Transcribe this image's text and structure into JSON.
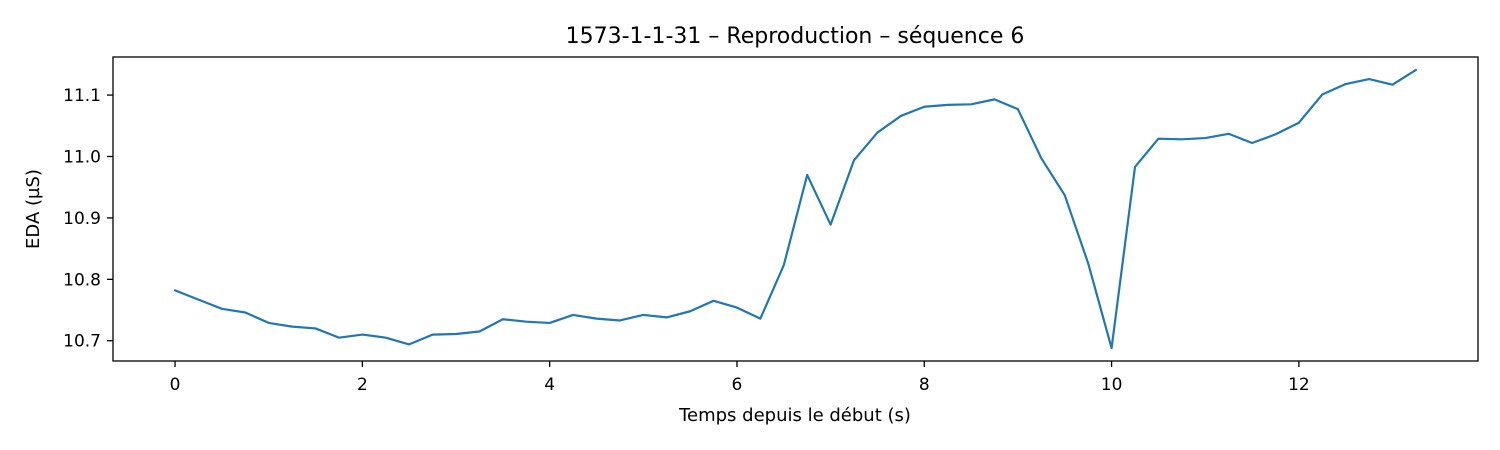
{
  "chart_data": {
    "type": "line",
    "title": "1573-1-1-31 – Reproduction – séquence 6",
    "xlabel": "Temps depuis le début (s)",
    "ylabel": "EDA (µS)",
    "xlim": [
      -0.6625,
      13.9125
    ],
    "ylim": [
      10.667,
      11.162
    ],
    "xticks": [
      0,
      2,
      4,
      6,
      8,
      10,
      12
    ],
    "yticks": [
      10.7,
      10.8,
      10.9,
      11.0,
      11.1
    ],
    "ytick_labels": [
      "10.7",
      "10.8",
      "10.9",
      "11.0",
      "11.1"
    ],
    "grid": false,
    "series": [
      {
        "color": "#1f77b4",
        "x": [
          0,
          0.25,
          0.5,
          0.75,
          1,
          1.25,
          1.5,
          1.75,
          2,
          2.25,
          2.5,
          2.75,
          3,
          3.25,
          3.5,
          3.75,
          4,
          4.25,
          4.5,
          4.75,
          5,
          5.25,
          5.5,
          5.75,
          6,
          6.25,
          6.5,
          6.75,
          7,
          7.25,
          7.5,
          7.75,
          8,
          8.25,
          8.5,
          8.75,
          9,
          9.25,
          9.5,
          9.75,
          10,
          10.25,
          10.5,
          10.75,
          11,
          11.25,
          11.5,
          11.75,
          12,
          12.25,
          12.5,
          12.75,
          13,
          13.25
        ],
        "y": [
          10.782,
          10.767,
          10.752,
          10.746,
          10.729,
          10.723,
          10.72,
          10.705,
          10.71,
          10.705,
          10.694,
          10.71,
          10.711,
          10.715,
          10.735,
          10.731,
          10.729,
          10.742,
          10.736,
          10.733,
          10.742,
          10.738,
          10.748,
          10.765,
          10.754,
          10.736,
          10.823,
          10.97,
          10.889,
          10.994,
          11.039,
          11.066,
          11.081,
          11.084,
          11.085,
          11.093,
          11.077,
          10.997,
          10.937,
          10.826,
          10.688,
          10.983,
          11.029,
          11.028,
          11.03,
          11.037,
          11.022,
          11.036,
          11.055,
          11.101,
          11.118,
          11.126,
          11.117,
          11.141
        ]
      }
    ]
  }
}
